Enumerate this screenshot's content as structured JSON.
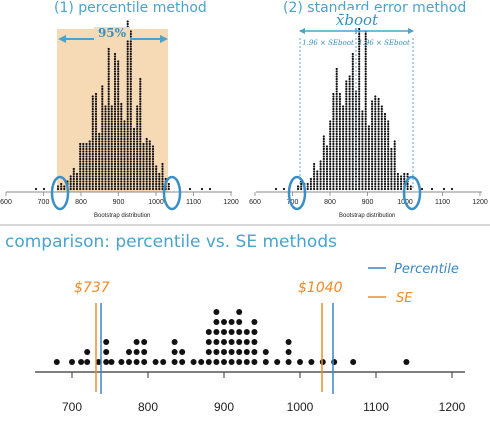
{
  "top_left": {
    "title": "(1) percentile method",
    "interval_label": "95%",
    "x_ticks": [
      "600",
      "700",
      "800",
      "900",
      "1000",
      "1100",
      "1200"
    ],
    "x_caption": "Bootstrap distribution"
  },
  "top_right": {
    "title": "(2) standard error method",
    "center_label": "x̄boot",
    "left_label": "1.96 × SEboot",
    "right_label": "1.96 × SEboot",
    "x_ticks": [
      "600",
      "700",
      "800",
      "900",
      "1000",
      "1100",
      "1200"
    ],
    "x_caption": "Bootstrap distribution"
  },
  "comparison": {
    "title": "comparison: percentile vs. SE methods",
    "legend": [
      {
        "label": "Percentile",
        "color": "#3b86c6"
      },
      {
        "label": "SE",
        "color": "#f08a24"
      }
    ],
    "annotation_left": "$737",
    "annotation_right": "$1040",
    "x_ticks": [
      "700",
      "800",
      "900",
      "1000",
      "1100",
      "1200"
    ]
  },
  "chart_data": {
    "type": "scatter",
    "description_of_marks": "dot plot of bootstrap means",
    "x_ticks": [
      700,
      800,
      900,
      1000,
      1100,
      1200
    ],
    "xlim": [
      680,
      1215
    ],
    "percentile_interval": [
      737,
      1040
    ],
    "se_interval": [
      730,
      1030
    ],
    "dot_counts": [
      {
        "x": 680,
        "count": 1
      },
      {
        "x": 700,
        "count": 1
      },
      {
        "x": 712,
        "count": 1
      },
      {
        "x": 720,
        "count": 2
      },
      {
        "x": 735,
        "count": 1
      },
      {
        "x": 745,
        "count": 3
      },
      {
        "x": 752,
        "count": 1
      },
      {
        "x": 765,
        "count": 1
      },
      {
        "x": 775,
        "count": 2
      },
      {
        "x": 785,
        "count": 3
      },
      {
        "x": 795,
        "count": 3
      },
      {
        "x": 810,
        "count": 1
      },
      {
        "x": 820,
        "count": 1
      },
      {
        "x": 835,
        "count": 3
      },
      {
        "x": 845,
        "count": 2
      },
      {
        "x": 860,
        "count": 1
      },
      {
        "x": 870,
        "count": 1
      },
      {
        "x": 880,
        "count": 4
      },
      {
        "x": 890,
        "count": 6
      },
      {
        "x": 900,
        "count": 5
      },
      {
        "x": 910,
        "count": 5
      },
      {
        "x": 920,
        "count": 6
      },
      {
        "x": 930,
        "count": 4
      },
      {
        "x": 940,
        "count": 5
      },
      {
        "x": 955,
        "count": 2
      },
      {
        "x": 970,
        "count": 1
      },
      {
        "x": 985,
        "count": 3
      },
      {
        "x": 1000,
        "count": 1
      },
      {
        "x": 1015,
        "count": 1
      },
      {
        "x": 1030,
        "count": 1
      },
      {
        "x": 1045,
        "count": 1
      },
      {
        "x": 1070,
        "count": 1
      },
      {
        "x": 1140,
        "count": 1
      }
    ]
  }
}
